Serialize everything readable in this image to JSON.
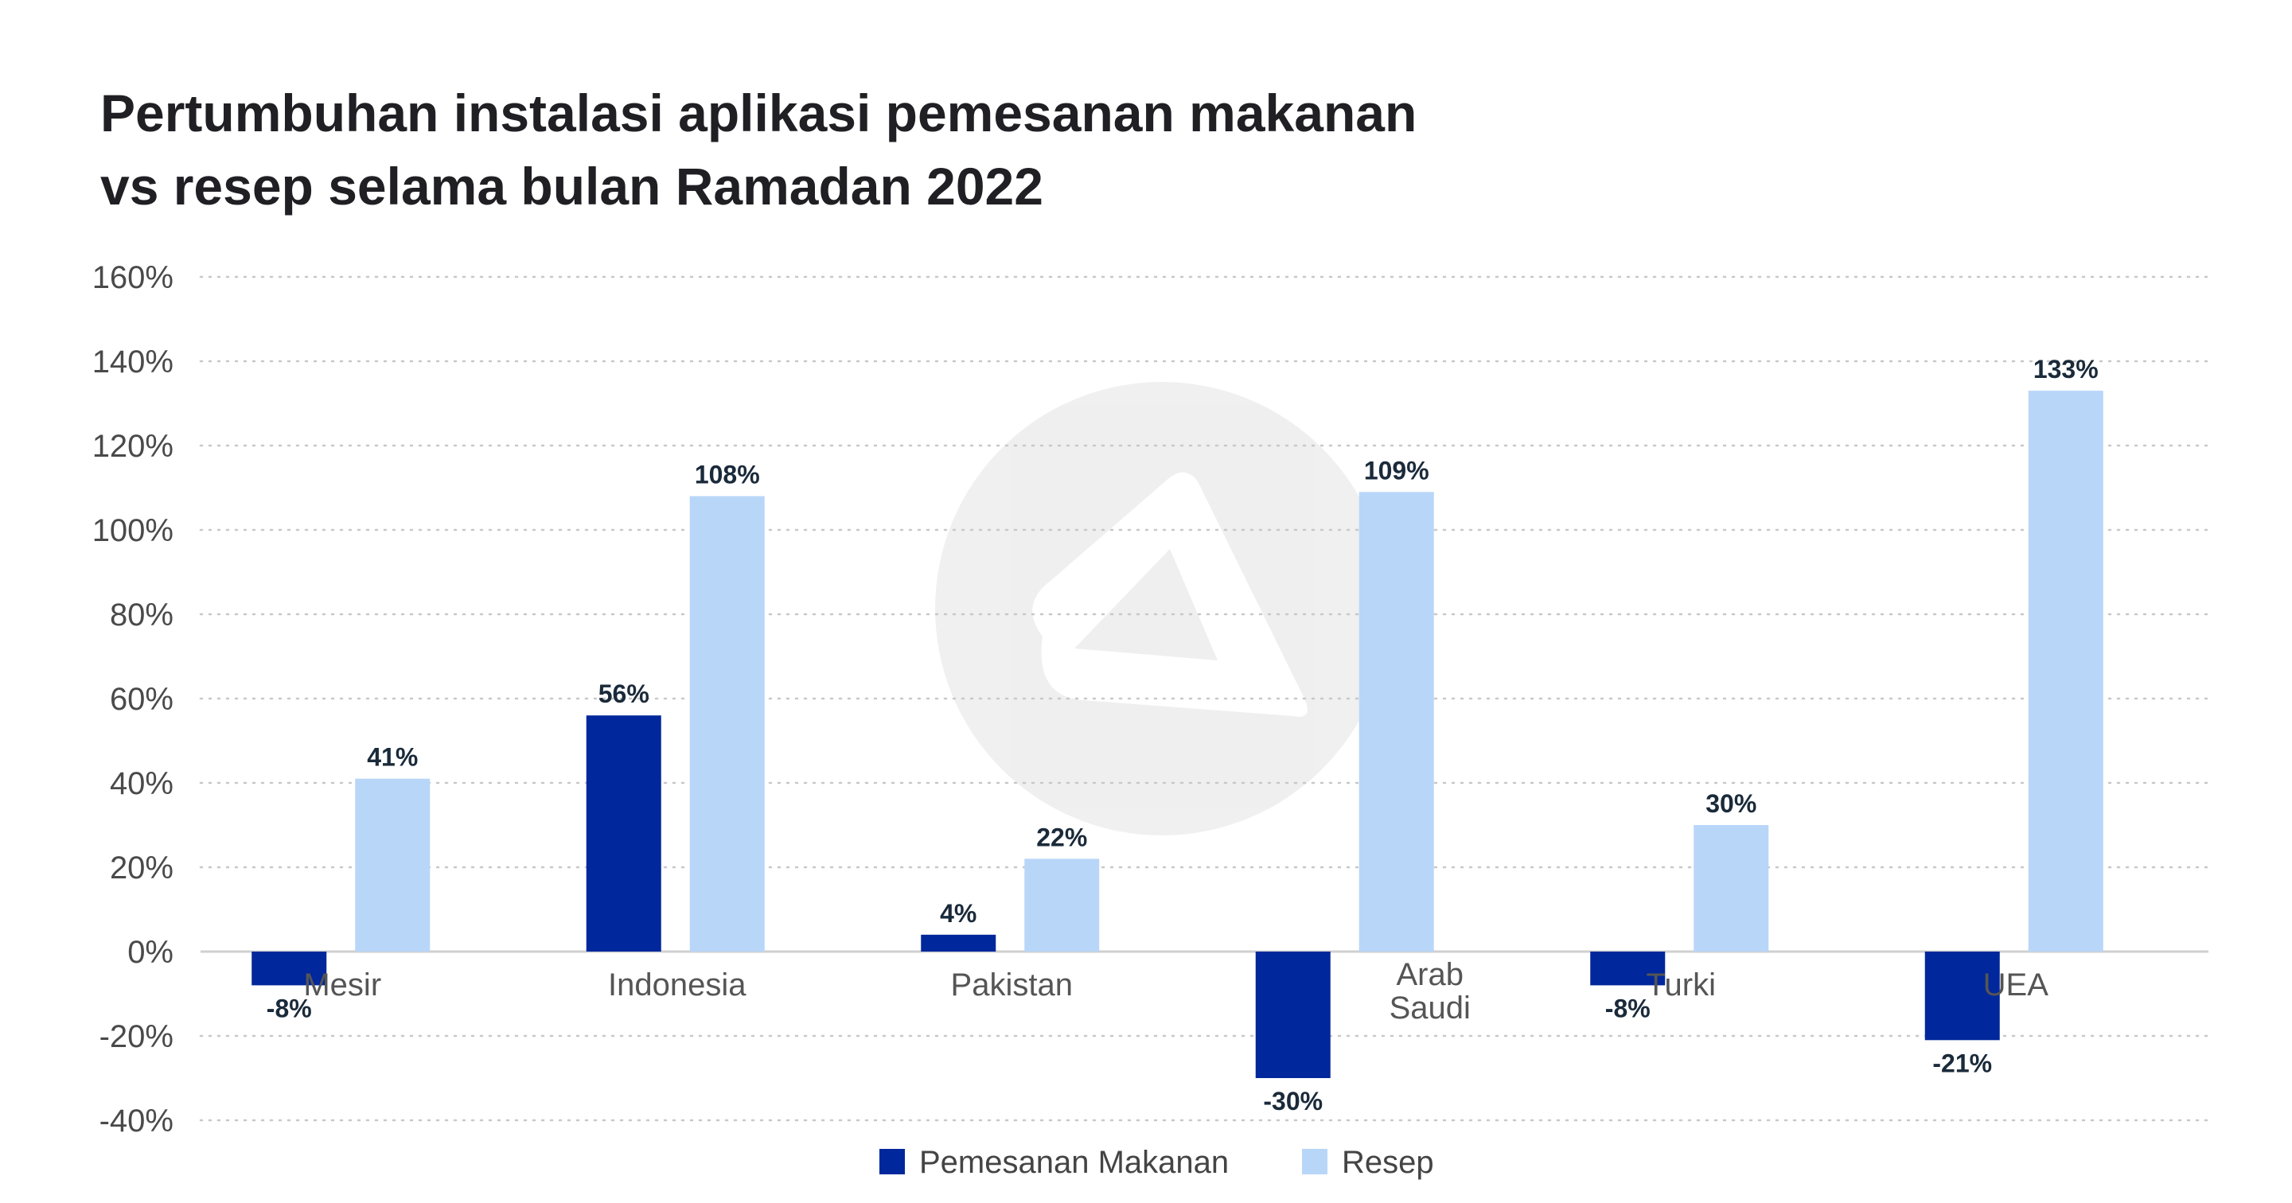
{
  "chart_data": {
    "type": "bar",
    "title": [
      "Pertumbuhan instalasi aplikasi pemesanan makanan",
      "vs resep selama bulan Ramadan 2022"
    ],
    "categories": [
      [
        "Mesir"
      ],
      [
        "Indonesia"
      ],
      [
        "Pakistan"
      ],
      [
        "Arab",
        "Saudi"
      ],
      [
        "Turki"
      ],
      [
        "UEA"
      ]
    ],
    "series": [
      {
        "name": "Pemesanan Makanan",
        "color": "#00279b",
        "values": [
          -8,
          56,
          4,
          -30,
          -8,
          -21
        ]
      },
      {
        "name": "Resep",
        "color": "#b8d6f8",
        "values": [
          41,
          108,
          22,
          109,
          30,
          133
        ]
      }
    ],
    "value_labels": [
      [
        "-8%",
        "56%",
        "4%",
        "-30%",
        "-8%",
        "-21%"
      ],
      [
        "41%",
        "108%",
        "22%",
        "109%",
        "30%",
        "133%"
      ]
    ],
    "yticks": [
      160,
      140,
      120,
      100,
      80,
      60,
      40,
      20,
      0,
      -20,
      -40
    ],
    "ytick_labels": [
      "160%",
      "140%",
      "120%",
      "100%",
      "80%",
      "60%",
      "40%",
      "20%",
      "0%",
      "-20%",
      "-40%"
    ],
    "ylim": [
      -40,
      160
    ],
    "xlabel": "",
    "ylabel": "",
    "grid": true,
    "legend_position": "bottom-center",
    "watermark": "logo-icon"
  }
}
